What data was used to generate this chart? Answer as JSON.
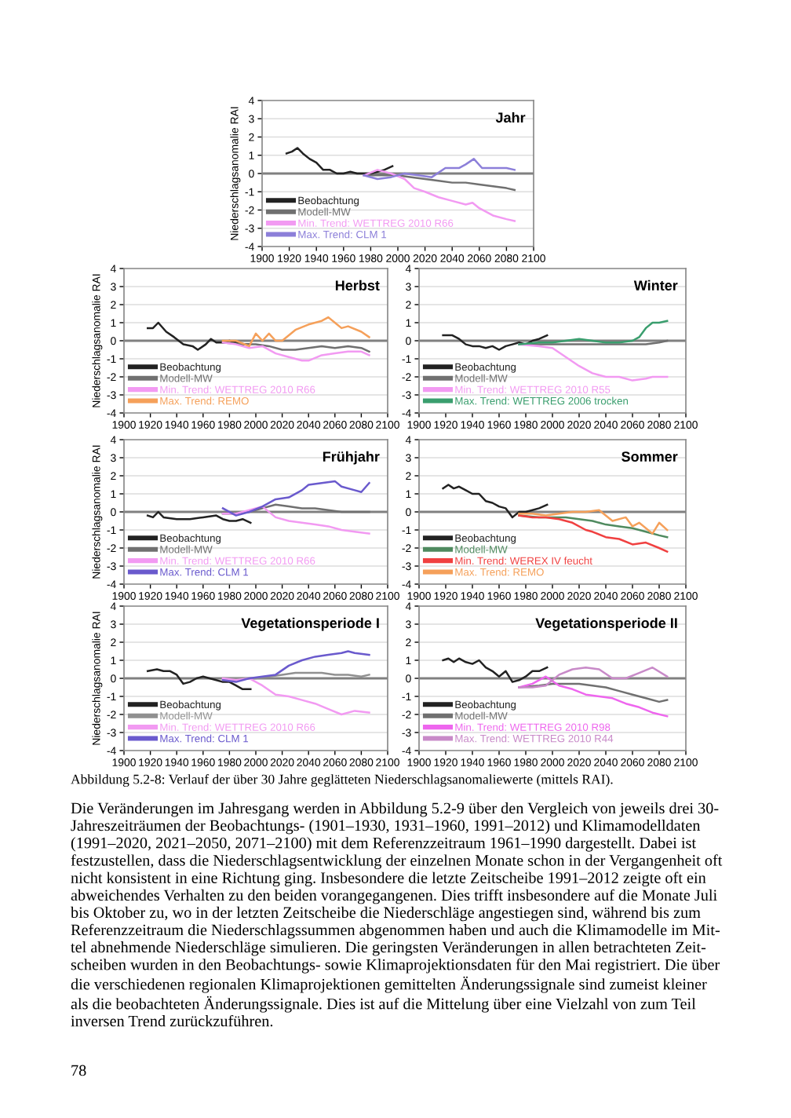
{
  "chart_data": [
    {
      "type": "line",
      "title": "Jahr",
      "ylabel": "Niederschlagsanomalie RAI",
      "xlim": [
        1900,
        2100
      ],
      "xticks": [
        1900,
        1920,
        1940,
        1960,
        1980,
        2000,
        2020,
        2040,
        2060,
        2080,
        2100
      ],
      "ylim": [
        -4,
        4
      ],
      "yticks": [
        -4,
        -3,
        -2,
        -1,
        0,
        1,
        2,
        3,
        4
      ],
      "grid": "y",
      "legend": "bottom left",
      "ref_lines": [
        {
          "axis": "y",
          "value": 0,
          "color": "#808080"
        }
      ],
      "series": [
        {
          "name": "Beobachtung",
          "color": "#222222",
          "x": [
            1918,
            1922,
            1926,
            1930,
            1935,
            1940,
            1945,
            1950,
            1955,
            1960,
            1965,
            1970,
            1975,
            1980,
            1985,
            1990,
            1996
          ],
          "values": [
            1.1,
            1.2,
            1.4,
            1.1,
            0.8,
            0.6,
            0.2,
            0.2,
            0.0,
            0.0,
            0.1,
            0.0,
            0.0,
            0.0,
            0.1,
            0.2,
            0.4
          ]
        },
        {
          "name": "Modell-MW",
          "color": "#707070",
          "x": [
            1975,
            1990,
            2000,
            2010,
            2020,
            2030,
            2040,
            2050,
            2060,
            2070,
            2080,
            2086
          ],
          "values": [
            -0.1,
            -0.1,
            -0.1,
            -0.2,
            -0.3,
            -0.4,
            -0.5,
            -0.5,
            -0.6,
            -0.7,
            -0.8,
            -0.9
          ]
        },
        {
          "name": "Min. Trend: WETTREG 2010 R66",
          "color": "#f29af2",
          "x": [
            1975,
            1985,
            1995,
            2005,
            2012,
            2020,
            2030,
            2040,
            2050,
            2055,
            2060,
            2070,
            2080,
            2086
          ],
          "values": [
            -0.1,
            0.2,
            0.0,
            -0.3,
            -0.8,
            -1.0,
            -1.3,
            -1.5,
            -1.7,
            -1.6,
            -1.9,
            -2.3,
            -2.5,
            -2.6
          ]
        },
        {
          "name": "Max. Trend: CLM 1",
          "color": "#8c7fd9",
          "x": [
            1975,
            1985,
            1995,
            2005,
            2015,
            2025,
            2035,
            2045,
            2050,
            2056,
            2062,
            2070,
            2080,
            2086
          ],
          "values": [
            -0.1,
            -0.3,
            -0.2,
            0.0,
            -0.1,
            -0.2,
            0.3,
            0.3,
            0.5,
            0.8,
            0.3,
            0.3,
            0.3,
            0.2
          ]
        }
      ]
    },
    {
      "type": "line",
      "title": "Herbst",
      "ylabel": "Niederschlagsanomalie RAI",
      "xlim": [
        1900,
        2100
      ],
      "xticks": [
        1900,
        1920,
        1940,
        1960,
        1980,
        2000,
        2020,
        2040,
        2060,
        2080,
        2100
      ],
      "ylim": [
        -4,
        4
      ],
      "yticks": [
        -4,
        -3,
        -2,
        -1,
        0,
        1,
        2,
        3,
        4
      ],
      "grid": "y",
      "legend": "bottom left",
      "ref_lines": [
        {
          "axis": "y",
          "value": 0,
          "color": "#808080"
        }
      ],
      "series": [
        {
          "name": "Beobachtung",
          "color": "#222222",
          "x": [
            1918,
            1922,
            1926,
            1932,
            1938,
            1945,
            1952,
            1956,
            1962,
            1966,
            1970,
            1975,
            1980,
            1985,
            1990,
            1996
          ],
          "values": [
            0.7,
            0.7,
            1.0,
            0.5,
            0.2,
            -0.2,
            -0.3,
            -0.5,
            -0.2,
            0.1,
            -0.1,
            -0.1,
            0.0,
            -0.1,
            -0.2,
            -0.2
          ]
        },
        {
          "name": "Modell-MW",
          "color": "#707070",
          "x": [
            1975,
            1990,
            2000,
            2010,
            2020,
            2030,
            2040,
            2050,
            2060,
            2070,
            2080,
            2086
          ],
          "values": [
            -0.1,
            -0.2,
            -0.2,
            -0.3,
            -0.5,
            -0.5,
            -0.4,
            -0.3,
            -0.4,
            -0.3,
            -0.4,
            -0.6
          ]
        },
        {
          "name": "Min. Trend: WETTREG 2010 R66",
          "color": "#f29af2",
          "x": [
            1975,
            1985,
            1995,
            2005,
            2015,
            2025,
            2035,
            2040,
            2050,
            2060,
            2070,
            2080,
            2086
          ],
          "values": [
            -0.1,
            -0.2,
            -0.4,
            -0.3,
            -0.7,
            -0.9,
            -1.1,
            -1.1,
            -0.8,
            -0.7,
            -0.6,
            -0.6,
            -0.8
          ]
        },
        {
          "name": "Max. Trend: REMO",
          "color": "#f5a05a",
          "x": [
            1975,
            1985,
            1995,
            2000,
            2005,
            2010,
            2015,
            2020,
            2030,
            2040,
            2050,
            2055,
            2060,
            2065,
            2070,
            2080,
            2086
          ],
          "values": [
            0.0,
            0.0,
            -0.3,
            0.4,
            0.0,
            0.4,
            0.0,
            0.0,
            0.6,
            0.9,
            1.1,
            1.3,
            1.0,
            0.7,
            0.8,
            0.5,
            0.2
          ]
        }
      ]
    },
    {
      "type": "line",
      "title": "Winter",
      "xlim": [
        1900,
        2100
      ],
      "xticks": [
        1900,
        1920,
        1940,
        1960,
        1980,
        2000,
        2020,
        2040,
        2060,
        2080,
        2100
      ],
      "ylim": [
        -4,
        4
      ],
      "yticks": [
        -4,
        -3,
        -2,
        -1,
        0,
        1,
        2,
        3,
        4
      ],
      "grid": "y",
      "legend": "bottom left",
      "ref_lines": [
        {
          "axis": "y",
          "value": 0,
          "color": "#808080"
        }
      ],
      "series": [
        {
          "name": "Beobachtung",
          "color": "#222222",
          "x": [
            1918,
            1925,
            1930,
            1935,
            1940,
            1945,
            1950,
            1955,
            1960,
            1965,
            1970,
            1975,
            1980,
            1985,
            1990,
            1996
          ],
          "values": [
            0.3,
            0.3,
            0.1,
            -0.2,
            -0.3,
            -0.3,
            -0.4,
            -0.3,
            -0.5,
            -0.3,
            -0.2,
            -0.1,
            -0.2,
            0.0,
            0.1,
            0.3
          ]
        },
        {
          "name": "Modell-MW",
          "color": "#707070",
          "x": [
            1975,
            1990,
            2000,
            2020,
            2040,
            2060,
            2070,
            2080,
            2086
          ],
          "values": [
            -0.2,
            -0.2,
            -0.2,
            -0.2,
            -0.2,
            -0.2,
            -0.2,
            -0.1,
            0.0
          ]
        },
        {
          "name": "Min. Trend: WETTREG 2010 R55",
          "color": "#f29af2",
          "x": [
            1975,
            1990,
            2000,
            2010,
            2020,
            2030,
            2040,
            2050,
            2060,
            2070,
            2075,
            2086
          ],
          "values": [
            -0.2,
            -0.3,
            -0.4,
            -0.9,
            -1.4,
            -1.8,
            -2.0,
            -2.0,
            -2.2,
            -2.1,
            -2.0,
            -2.0
          ]
        },
        {
          "name": "Max. Trend: WETTREG 2006 trocken",
          "color": "#3a9e6e",
          "x": [
            1975,
            1990,
            2000,
            2010,
            2020,
            2030,
            2040,
            2050,
            2060,
            2065,
            2070,
            2075,
            2080,
            2086
          ],
          "values": [
            -0.2,
            -0.1,
            -0.1,
            0.0,
            0.1,
            0.0,
            -0.1,
            -0.1,
            0.0,
            0.2,
            0.7,
            1.0,
            1.0,
            1.1
          ]
        }
      ]
    },
    {
      "type": "line",
      "title": "Frühjahr",
      "ylabel": "Niederschlagsanomalie RAI",
      "xlim": [
        1900,
        2100
      ],
      "xticks": [
        1900,
        1920,
        1940,
        1960,
        1980,
        2000,
        2020,
        2040,
        2060,
        2080,
        2100
      ],
      "ylim": [
        -4,
        4
      ],
      "yticks": [
        -4,
        -3,
        -2,
        -1,
        0,
        1,
        2,
        3,
        4
      ],
      "grid": "y",
      "legend": "bottom left",
      "ref_lines": [
        {
          "axis": "y",
          "value": 0,
          "color": "#808080"
        }
      ],
      "series": [
        {
          "name": "Beobachtung",
          "color": "#222222",
          "x": [
            1918,
            1922,
            1926,
            1930,
            1940,
            1950,
            1960,
            1970,
            1975,
            1980,
            1985,
            1990,
            1996
          ],
          "values": [
            -0.2,
            -0.3,
            0.0,
            -0.3,
            -0.4,
            -0.4,
            -0.3,
            -0.2,
            -0.4,
            -0.5,
            -0.5,
            -0.4,
            -0.6
          ]
        },
        {
          "name": "Modell-MW",
          "color": "#707070",
          "x": [
            1975,
            1985,
            1995,
            2005,
            2015,
            2025,
            2035,
            2045,
            2055,
            2065,
            2075,
            2086
          ],
          "values": [
            -0.1,
            -0.1,
            0.0,
            0.2,
            0.4,
            0.3,
            0.2,
            0.2,
            0.1,
            0.0,
            0.0,
            0.0
          ]
        },
        {
          "name": "Min. Trend: WETTREG 2010 R66",
          "color": "#f29af2",
          "x": [
            1975,
            1985,
            1995,
            2005,
            2015,
            2025,
            2035,
            2045,
            2055,
            2065,
            2075,
            2086
          ],
          "values": [
            -0.1,
            -0.1,
            0.1,
            0.3,
            -0.3,
            -0.5,
            -0.6,
            -0.7,
            -0.8,
            -1.0,
            -1.1,
            -1.2
          ]
        },
        {
          "name": "Max. Trend: CLM 1",
          "color": "#6a5acd",
          "x": [
            1975,
            1985,
            1995,
            2005,
            2015,
            2025,
            2035,
            2040,
            2050,
            2060,
            2065,
            2075,
            2080,
            2086
          ],
          "values": [
            0.2,
            -0.2,
            0.0,
            0.3,
            0.7,
            0.8,
            1.2,
            1.5,
            1.6,
            1.7,
            1.4,
            1.2,
            1.1,
            1.6
          ]
        }
      ]
    },
    {
      "type": "line",
      "title": "Sommer",
      "xlim": [
        1900,
        2100
      ],
      "xticks": [
        1900,
        1920,
        1940,
        1960,
        1980,
        2000,
        2020,
        2040,
        2060,
        2080,
        2100
      ],
      "ylim": [
        -4,
        4
      ],
      "yticks": [
        -4,
        -3,
        -2,
        -1,
        0,
        1,
        2,
        3,
        4
      ],
      "grid": "y",
      "legend": "bottom left",
      "ref_lines": [
        {
          "axis": "y",
          "value": 0,
          "color": "#808080"
        }
      ],
      "series": [
        {
          "name": "Beobachtung",
          "color": "#222222",
          "x": [
            1918,
            1922,
            1926,
            1930,
            1935,
            1940,
            1945,
            1950,
            1955,
            1960,
            1965,
            1970,
            1975,
            1980,
            1985,
            1990,
            1996
          ],
          "values": [
            1.3,
            1.5,
            1.3,
            1.4,
            1.2,
            1.0,
            1.0,
            0.6,
            0.5,
            0.3,
            0.2,
            -0.3,
            0.0,
            0.0,
            0.1,
            0.2,
            0.4
          ]
        },
        {
          "name": "Modell-MW",
          "color": "#4f8a5f",
          "x": [
            1975,
            1990,
            2000,
            2010,
            2020,
            2030,
            2040,
            2050,
            2060,
            2070,
            2080,
            2086
          ],
          "values": [
            -0.2,
            -0.3,
            -0.3,
            -0.3,
            -0.4,
            -0.5,
            -0.7,
            -0.8,
            -0.9,
            -1.1,
            -1.3,
            -1.4
          ]
        },
        {
          "name": "Min. Trend: WEREX IV feucht",
          "color": "#f04040",
          "x": [
            1975,
            1985,
            1995,
            2005,
            2015,
            2025,
            2030,
            2040,
            2050,
            2060,
            2070,
            2080,
            2086
          ],
          "values": [
            -0.2,
            -0.3,
            -0.3,
            -0.4,
            -0.6,
            -1.0,
            -1.1,
            -1.4,
            -1.5,
            -1.8,
            -1.7,
            -2.0,
            -2.2
          ]
        },
        {
          "name": "Max. Trend: REMO",
          "color": "#f5a05a",
          "x": [
            1975,
            1985,
            1995,
            2005,
            2015,
            2025,
            2035,
            2045,
            2055,
            2060,
            2065,
            2075,
            2080,
            2086
          ],
          "values": [
            -0.1,
            -0.1,
            -0.2,
            -0.1,
            0.0,
            0.0,
            0.1,
            -0.5,
            -0.3,
            -0.8,
            -0.6,
            -1.2,
            -0.6,
            -1.0
          ]
        }
      ]
    },
    {
      "type": "line",
      "title": "Vegetationsperiode I",
      "ylabel": "Niederschlagsanomalie RAI",
      "xlim": [
        1900,
        2100
      ],
      "xticks": [
        1900,
        1920,
        1940,
        1960,
        1980,
        2000,
        2020,
        2040,
        2060,
        2080,
        2100
      ],
      "ylim": [
        -4,
        4
      ],
      "yticks": [
        -4,
        -3,
        -2,
        -1,
        0,
        1,
        2,
        3,
        4
      ],
      "grid": "y",
      "legend": "bottom left",
      "ref_lines": [
        {
          "axis": "y",
          "value": 0,
          "color": "#808080"
        }
      ],
      "series": [
        {
          "name": "Beobachtung",
          "color": "#222222",
          "x": [
            1918,
            1925,
            1930,
            1935,
            1940,
            1945,
            1950,
            1955,
            1960,
            1965,
            1970,
            1975,
            1980,
            1985,
            1990,
            1996
          ],
          "values": [
            0.4,
            0.5,
            0.4,
            0.4,
            0.2,
            -0.3,
            -0.2,
            0.0,
            0.1,
            0.0,
            -0.1,
            -0.2,
            -0.2,
            -0.4,
            -0.6,
            -0.6
          ]
        },
        {
          "name": "Modell-MW",
          "color": "#909090",
          "x": [
            1975,
            1990,
            2000,
            2010,
            2020,
            2030,
            2040,
            2050,
            2060,
            2070,
            2080,
            2086
          ],
          "values": [
            0.0,
            0.0,
            0.0,
            0.1,
            0.2,
            0.3,
            0.3,
            0.3,
            0.2,
            0.2,
            0.1,
            0.2
          ]
        },
        {
          "name": "Min. Trend: WETTREG 2010 R66",
          "color": "#f29af2",
          "x": [
            1975,
            1985,
            1995,
            2005,
            2015,
            2025,
            2035,
            2045,
            2055,
            2065,
            2075,
            2086
          ],
          "values": [
            0.0,
            -0.1,
            0.0,
            -0.4,
            -0.9,
            -1.0,
            -1.2,
            -1.4,
            -1.7,
            -2.0,
            -1.8,
            -1.9
          ]
        },
        {
          "name": "Max. Trend: CLM 1",
          "color": "#6a5acd",
          "x": [
            1975,
            1985,
            1995,
            2005,
            2015,
            2025,
            2035,
            2045,
            2055,
            2065,
            2070,
            2075,
            2086
          ],
          "values": [
            -0.1,
            -0.2,
            0.0,
            0.1,
            0.2,
            0.7,
            1.0,
            1.2,
            1.3,
            1.4,
            1.5,
            1.4,
            1.3
          ]
        }
      ]
    },
    {
      "type": "line",
      "title": "Vegetationsperiode II",
      "xlim": [
        1900,
        2100
      ],
      "xticks": [
        1900,
        1920,
        1940,
        1960,
        1980,
        2000,
        2020,
        2040,
        2060,
        2080,
        2100
      ],
      "ylim": [
        -4,
        4
      ],
      "yticks": [
        -4,
        -3,
        -2,
        -1,
        0,
        1,
        2,
        3,
        4
      ],
      "grid": "y",
      "legend": "bottom left",
      "ref_lines": [
        {
          "axis": "y",
          "value": 0,
          "color": "#808080"
        }
      ],
      "annotations": [
        "Abbildung 5.2-8: Verlauf der über 30 Jahre geglätteten Niederschlagsanomaliewerte (mittels RAI).",
        "Die Veränderungen im Jahresgang werden in Abbildung 5.2-9 über den Vergleich von jeweils drei 30-\nJahreszeiträumen der Beobachtungs- (1901–1930, 1931–1960, 1991–2012) und Klimamodelldaten\n(1991–2020, 2021–2050, 2071–2100) mit dem Referenzzeitraum 1961–1990 dargestellt. Dabei ist\nfestzustellen, dass die Niederschlagsentwicklung der einzelnen Monate schon in der Vergangenheit oft\nnicht konsistent in eine Richtung ging. Insbesondere die letzte Zeitscheibe 1991–2012 zeigte oft ein\nabweichendes Verhalten zu den beiden vorangegangenen. Dies trifft insbesondere auf die Monate Juli\nbis Oktober zu, wo in der letzten Zeitscheibe die Niederschläge angestiegen sind, während bis zum\nReferenzzeitraum die Niederschlagssummen abgenommen haben und auch die Klimamodelle im Mit-\ntel abnehmende Niederschläge simulieren. Die geringsten Veränderungen in allen betrachteten Zeit-\nscheiben wurden in den Beobachtungs- sowie Klimaprojektionsdaten für den Mai registriert. Die über\ndie verschiedenen regionalen Klimaprojektionen gemittelten Änderungssignale sind zumeist kleiner\nals die beobachteten Änderungssignale. Dies ist auf die Mittelung über eine Vielzahl von zum Teil\ninversen Trend zurückzuführen.",
        "78"
      ],
      "series": [
        {
          "name": "Beobachtung",
          "color": "#222222",
          "x": [
            1918,
            1922,
            1926,
            1930,
            1935,
            1940,
            1945,
            1950,
            1955,
            1960,
            1965,
            1970,
            1975,
            1980,
            1985,
            1990,
            1996
          ],
          "values": [
            1.0,
            1.1,
            0.9,
            1.1,
            0.9,
            0.8,
            1.0,
            0.6,
            0.4,
            0.1,
            0.4,
            -0.2,
            -0.1,
            0.1,
            0.4,
            0.4,
            0.6
          ]
        },
        {
          "name": "Modell-MW",
          "color": "#707070",
          "x": [
            1975,
            1990,
            2000,
            2020,
            2030,
            2040,
            2050,
            2060,
            2070,
            2080,
            2086
          ],
          "values": [
            -0.5,
            -0.4,
            -0.3,
            -0.3,
            -0.4,
            -0.5,
            -0.7,
            -0.9,
            -1.1,
            -1.3,
            -1.2
          ]
        },
        {
          "name": "Min. Trend: WETTREG 2010 R98",
          "color": "#ee66ee",
          "x": [
            1975,
            1985,
            1995,
            2005,
            2015,
            2025,
            2035,
            2045,
            2055,
            2065,
            2075,
            2086
          ],
          "values": [
            -0.5,
            -0.3,
            0.1,
            -0.4,
            -0.6,
            -0.9,
            -1.0,
            -1.1,
            -1.4,
            -1.6,
            -1.9,
            -2.1
          ]
        },
        {
          "name": "Max. Trend: WETTREG 2010 R44",
          "color": "#c88ac8",
          "x": [
            1975,
            1985,
            1995,
            2005,
            2015,
            2025,
            2035,
            2045,
            2055,
            2065,
            2075,
            2086
          ],
          "values": [
            -0.5,
            -0.5,
            -0.4,
            0.2,
            0.5,
            0.6,
            0.5,
            0.0,
            0.0,
            0.3,
            0.6,
            0.1
          ]
        }
      ]
    }
  ]
}
